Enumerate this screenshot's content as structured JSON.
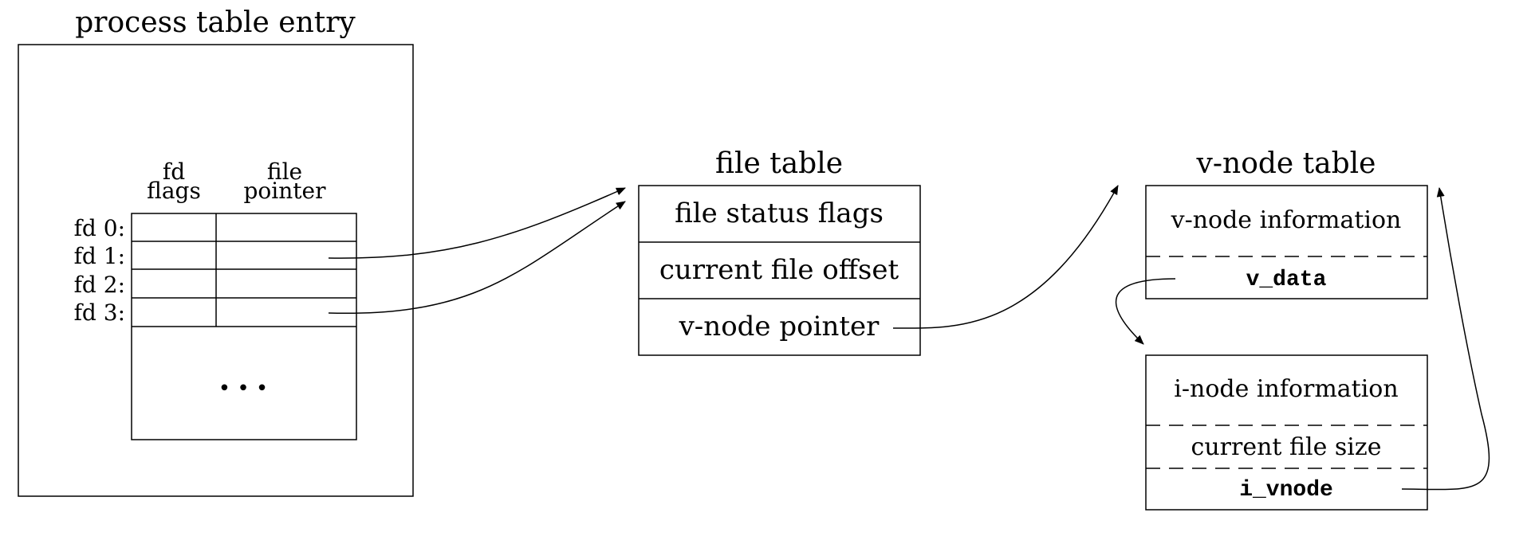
{
  "process_table": {
    "title": "process table entry",
    "col_fd_flags_line1": "fd",
    "col_fd_flags_line2": "flags",
    "col_file_pointer_line1": "file",
    "col_file_pointer_line2": "pointer",
    "rows": [
      "fd 0:",
      "fd 1:",
      "fd 2:",
      "fd 3:"
    ],
    "ellipsis": "•  •  •"
  },
  "file_table": {
    "title": "file table",
    "rows": [
      "file status flags",
      "current file offset",
      "v-node pointer"
    ]
  },
  "vnode_table": {
    "title": "v-node table",
    "vnode_info": "v-node information",
    "v_data": "v_data",
    "inode_info": "i-node information",
    "current_file_size": "current file size",
    "i_vnode": "i_vnode"
  }
}
